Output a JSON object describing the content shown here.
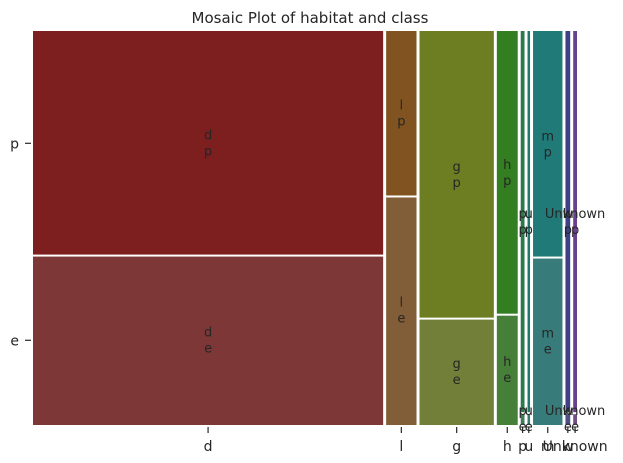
{
  "chart_data": {
    "type": "mosaic",
    "title": "Mosaic Plot of habitat and class",
    "x_variable": "habitat",
    "y_variable": "class",
    "y_categories": [
      "p",
      "e"
    ],
    "x_categories": [
      "d",
      "l",
      "g",
      "h",
      "p",
      "u",
      "m",
      "w",
      "Unknown"
    ],
    "x_tick_labels": [
      "d",
      "l",
      "g",
      "h",
      "p",
      "u",
      "m",
      "w",
      "Unknown"
    ],
    "columns": [
      {
        "habitat": "d",
        "width_share": 0.5535,
        "p_share": 0.57,
        "color": "#7d1e1f",
        "label_p": "d\np",
        "label_e": "d\ne"
      },
      {
        "habitat": "l",
        "width_share": 0.048,
        "p_share": 0.42,
        "color": "#815320",
        "label_p": "l\np",
        "label_e": "l\ne"
      },
      {
        "habitat": "g",
        "width_share": 0.1175,
        "p_share": 0.73,
        "color": "#6c7e21",
        "label_p": "g\np",
        "label_e": "g\ne"
      },
      {
        "habitat": "h",
        "width_share": 0.033,
        "p_share": 0.72,
        "color": "#327e20",
        "label_p": "h\np",
        "label_e": "h\ne"
      },
      {
        "habitat": "p",
        "width_share": 0.006,
        "p_share": 0.97,
        "color": "#2a7a4a",
        "label_p": "p\np",
        "label_e": "p\ne"
      },
      {
        "habitat": "u",
        "width_share": 0.004,
        "p_share": 0.97,
        "color": "#21786a",
        "label_p": "u\np",
        "label_e": "u\ne"
      },
      {
        "habitat": "m",
        "width_share": 0.0465,
        "p_share": 0.575,
        "color": "#1f7a78",
        "label_p": "m\np",
        "label_e": "m\ne"
      },
      {
        "habitat": "w",
        "width_share": 0.0075,
        "p_share": 0.97,
        "color": "#3f3f85",
        "label_p": "w\np",
        "label_e": "w\ne"
      },
      {
        "habitat": "Unknown",
        "width_share": 0.006,
        "p_share": 0.97,
        "color": "#6a3f8c",
        "label_p": "Unknown\np",
        "label_e": "Unknown\ne"
      }
    ]
  }
}
